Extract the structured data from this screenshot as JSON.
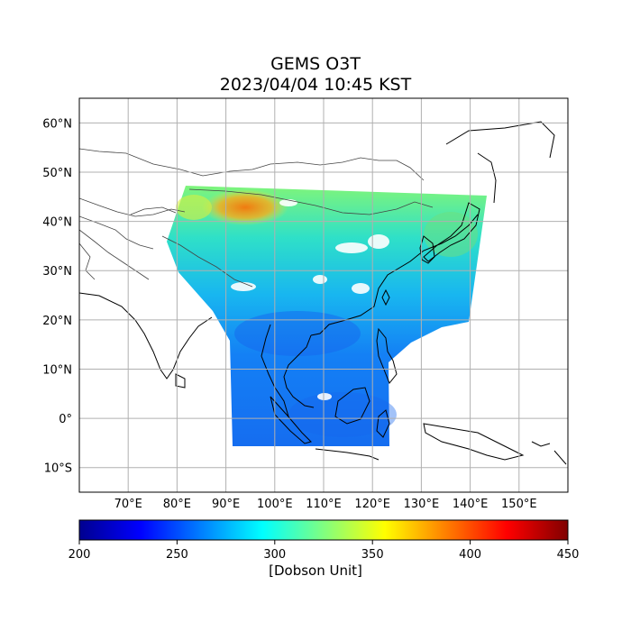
{
  "title": "GEMS O3T",
  "subtitle": "2023/04/04 10:45 KST",
  "map": {
    "lon_range": [
      60,
      160
    ],
    "lat_range": [
      -15,
      65
    ],
    "gridlines": true,
    "lat_ticks": [
      {
        "value": 60,
        "label": "60°N"
      },
      {
        "value": 50,
        "label": "50°N"
      },
      {
        "value": 40,
        "label": "40°N"
      },
      {
        "value": 30,
        "label": "30°N"
      },
      {
        "value": 20,
        "label": "20°N"
      },
      {
        "value": 10,
        "label": "10°N"
      },
      {
        "value": 0,
        "label": "0°"
      },
      {
        "value": -10,
        "label": "10°S"
      }
    ],
    "lon_ticks": [
      {
        "value": 70,
        "label": "70°E"
      },
      {
        "value": 80,
        "label": "80°E"
      },
      {
        "value": 90,
        "label": "90°E"
      },
      {
        "value": 100,
        "label": "100°E"
      },
      {
        "value": 110,
        "label": "110°E"
      },
      {
        "value": 120,
        "label": "120°E"
      },
      {
        "value": 130,
        "label": "130°E"
      },
      {
        "value": 140,
        "label": "140°E"
      },
      {
        "value": 150,
        "label": "150°E"
      }
    ]
  },
  "colorbar": {
    "min": 200,
    "max": 450,
    "colormap": "jet",
    "ticks": [
      "200",
      "250",
      "300",
      "350",
      "400",
      "450"
    ],
    "label": "[Dobson Unit]"
  }
}
